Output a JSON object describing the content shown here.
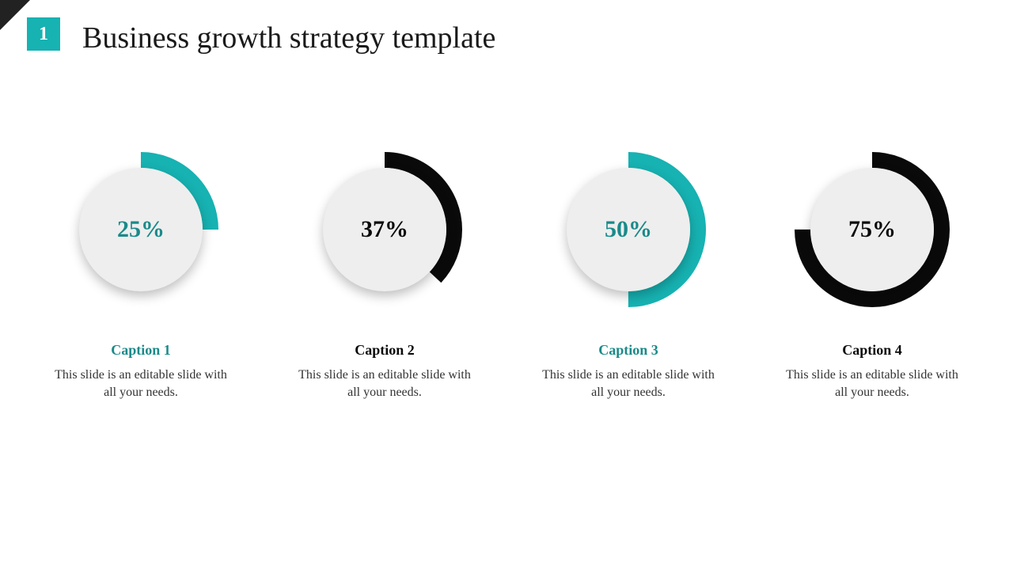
{
  "slide_number": "1",
  "title": "Business growth strategy template",
  "accent_color": "#17b2b2",
  "title_color": "#1a1a1a",
  "corner_color": "#222222",
  "inner_circle_color": "#eeeeee",
  "desc_color": "#333333",
  "items": [
    {
      "percent": 25,
      "label": "25%",
      "arc_color": "#17b2b2",
      "pct_color": "#1a8a8a",
      "caption": "Caption 1",
      "caption_color": "#1a8a8a",
      "desc": "This slide is an editable slide with all your needs."
    },
    {
      "percent": 37,
      "label": "37%",
      "arc_color": "#0a0a0a",
      "pct_color": "#0a0a0a",
      "caption": "Caption 2",
      "caption_color": "#0a0a0a",
      "desc": "This slide is an editable slide with all your needs."
    },
    {
      "percent": 50,
      "label": "50%",
      "arc_color": "#17b2b2",
      "pct_color": "#1a8a8a",
      "caption": "Caption 3",
      "caption_color": "#1a8a8a",
      "desc": "This slide is an editable slide with all your needs."
    },
    {
      "percent": 75,
      "label": "75%",
      "arc_color": "#0a0a0a",
      "pct_color": "#0a0a0a",
      "caption": "Caption 4",
      "caption_color": "#0a0a0a",
      "desc": "This slide is an editable slide with all your needs."
    }
  ],
  "donut": {
    "outer_r": 98,
    "inner_r": 78,
    "stroke_w": 20,
    "circumference": 552.92
  }
}
